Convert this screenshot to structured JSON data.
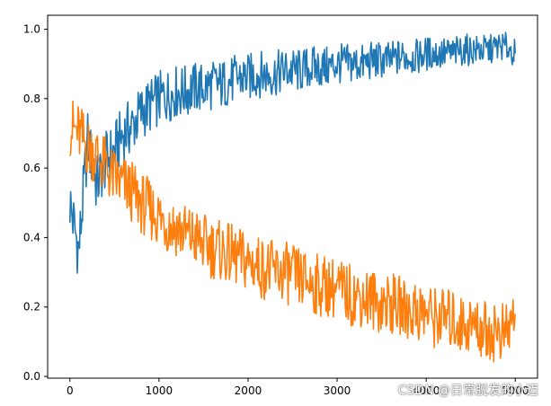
{
  "chart_data": {
    "type": "line",
    "title": "",
    "xlabel": "",
    "ylabel": "",
    "xlim": [
      -250,
      5250
    ],
    "ylim": [
      -0.005,
      1.04
    ],
    "xticks": [
      "0",
      "1000",
      "2000",
      "3000",
      "4000",
      "5000"
    ],
    "yticks": [
      "0.0",
      "0.2",
      "0.4",
      "0.6",
      "0.8",
      "1.0"
    ],
    "grid": false,
    "series": [
      {
        "color": "#1f77b4",
        "x": [
          0,
          100,
          200,
          300,
          400,
          500,
          600,
          700,
          800,
          900,
          1000,
          1100,
          1200,
          1300,
          1400,
          1500,
          1600,
          1700,
          1800,
          1900,
          2000,
          2100,
          2200,
          2300,
          2400,
          2500,
          2600,
          2700,
          2800,
          2900,
          3000,
          3100,
          3200,
          3300,
          3400,
          3500,
          3600,
          3700,
          3800,
          3900,
          4000,
          4100,
          4200,
          4300,
          4400,
          4500,
          4600,
          4700,
          4800,
          4900,
          5000
        ],
        "values": [
          0.5,
          0.36,
          0.68,
          0.55,
          0.62,
          0.65,
          0.7,
          0.72,
          0.76,
          0.78,
          0.8,
          0.81,
          0.82,
          0.82,
          0.83,
          0.83,
          0.84,
          0.84,
          0.85,
          0.86,
          0.86,
          0.87,
          0.87,
          0.87,
          0.88,
          0.88,
          0.88,
          0.89,
          0.89,
          0.89,
          0.9,
          0.9,
          0.9,
          0.9,
          0.91,
          0.91,
          0.91,
          0.92,
          0.92,
          0.92,
          0.93,
          0.93,
          0.93,
          0.93,
          0.94,
          0.94,
          0.94,
          0.94,
          0.95,
          0.95,
          0.93
        ]
      },
      {
        "color": "#ff7f0e",
        "x": [
          0,
          100,
          200,
          300,
          400,
          500,
          600,
          700,
          800,
          900,
          1000,
          1100,
          1200,
          1300,
          1400,
          1500,
          1600,
          1700,
          1800,
          1900,
          2000,
          2100,
          2200,
          2300,
          2400,
          2500,
          2600,
          2700,
          2800,
          2900,
          3000,
          3100,
          3200,
          3300,
          3400,
          3500,
          3600,
          3700,
          3800,
          3900,
          4000,
          4100,
          4200,
          4300,
          4400,
          4500,
          4600,
          4700,
          4800,
          4900,
          5000
        ],
        "values": [
          0.72,
          0.7,
          0.66,
          0.64,
          0.6,
          0.57,
          0.55,
          0.53,
          0.5,
          0.48,
          0.46,
          0.44,
          0.43,
          0.41,
          0.4,
          0.38,
          0.37,
          0.36,
          0.35,
          0.34,
          0.33,
          0.32,
          0.31,
          0.3,
          0.3,
          0.29,
          0.28,
          0.27,
          0.26,
          0.26,
          0.25,
          0.24,
          0.23,
          0.23,
          0.22,
          0.21,
          0.21,
          0.2,
          0.19,
          0.19,
          0.18,
          0.17,
          0.17,
          0.16,
          0.15,
          0.15,
          0.14,
          0.13,
          0.13,
          0.12,
          0.18
        ]
      }
    ]
  },
  "watermark": "CSDN @日常脱发的小迈"
}
